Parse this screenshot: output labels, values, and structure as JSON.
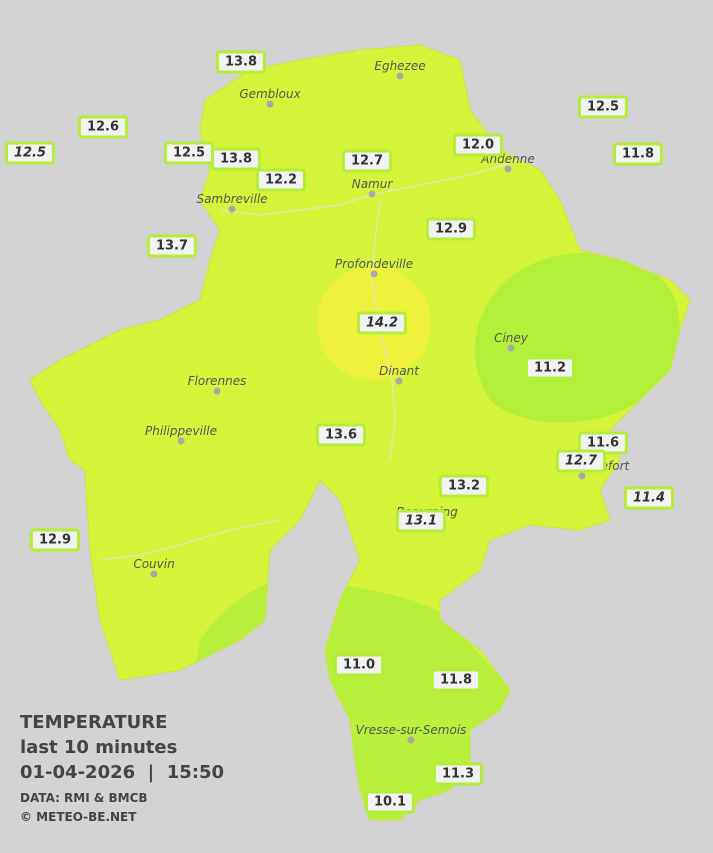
{
  "legend": {
    "title": "TEMPERATURE",
    "period": "last 10 minutes",
    "datetime": "01-04-2026  |  15:50",
    "source": "DATA: RMI & BMCB",
    "copyright": "© METEO-BE.NET"
  },
  "cities": [
    "Eghezee",
    "Gembloux",
    "Andenne",
    "Namur",
    "Sambreville",
    "Profondeville",
    "Ciney",
    "Florennes",
    "Dinant",
    "Philippeville",
    "Rochefort",
    "Beauraing",
    "Couvin",
    "Vresse-sur-Semois"
  ],
  "stations": [
    {
      "label": "13.8",
      "italic": false
    },
    {
      "label": "12.6",
      "italic": false
    },
    {
      "label": "12.5",
      "italic": true
    },
    {
      "label": "12.5",
      "italic": false
    },
    {
      "label": "13.8",
      "italic": false
    },
    {
      "label": "12.2",
      "italic": false
    },
    {
      "label": "12.7",
      "italic": false
    },
    {
      "label": "12.0",
      "italic": false
    },
    {
      "label": "12.5",
      "italic": false
    },
    {
      "label": "11.8",
      "italic": false
    },
    {
      "label": "13.7",
      "italic": false
    },
    {
      "label": "12.9",
      "italic": false
    },
    {
      "label": "14.2",
      "italic": true
    },
    {
      "label": "11.2",
      "italic": false
    },
    {
      "label": "13.6",
      "italic": false
    },
    {
      "label": "11.6",
      "italic": false
    },
    {
      "label": "12.7",
      "italic": true
    },
    {
      "label": "13.2",
      "italic": false
    },
    {
      "label": "13.1",
      "italic": true
    },
    {
      "label": "11.4",
      "italic": true
    },
    {
      "label": "12.9",
      "italic": false
    },
    {
      "label": "11.0",
      "italic": false
    },
    {
      "label": "11.8",
      "italic": false
    },
    {
      "label": "11.3",
      "italic": false
    },
    {
      "label": "10.1",
      "italic": false
    }
  ]
}
